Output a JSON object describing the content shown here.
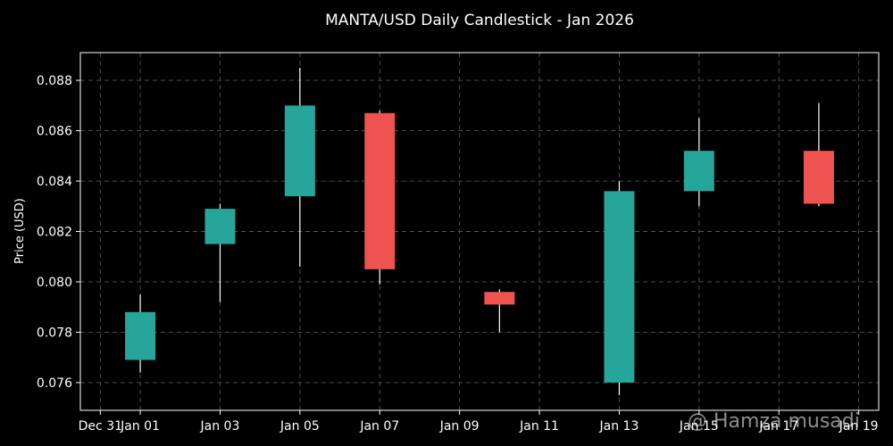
{
  "watermark": "@ Hamza musadi",
  "chart_data": {
    "type": "candlestick",
    "title": "MANTA/USD Daily Candlestick - Jan 2026",
    "xlabel": "",
    "ylabel": "Price (USD)",
    "ylim": [
      0.0749,
      0.0891
    ],
    "yticks": [
      "0.076",
      "0.078",
      "0.080",
      "0.082",
      "0.084",
      "0.086",
      "0.088"
    ],
    "xticks": [
      "Dec 31",
      "Jan 01",
      "Jan 03",
      "Jan 05",
      "Jan 07",
      "Jan 09",
      "Jan 11",
      "Jan 13",
      "Jan 15",
      "Jan 17",
      "Jan 19"
    ],
    "xtick_days": [
      -1,
      0,
      2,
      4,
      6,
      8,
      10,
      12,
      14,
      16,
      18
    ],
    "xlim_days": [
      -1.5,
      18.5
    ],
    "grid": true,
    "up_color": "#26a69a",
    "down_color": "#ef5350",
    "candles": [
      {
        "date": "Jan 01",
        "day": 0,
        "open": 0.0769,
        "high": 0.0795,
        "low": 0.0764,
        "close": 0.0788
      },
      {
        "date": "Jan 03",
        "day": 2,
        "open": 0.0815,
        "high": 0.0831,
        "low": 0.0792,
        "close": 0.0829
      },
      {
        "date": "Jan 05",
        "day": 4,
        "open": 0.0834,
        "high": 0.0885,
        "low": 0.0806,
        "close": 0.087
      },
      {
        "date": "Jan 07",
        "day": 6,
        "open": 0.0867,
        "high": 0.0868,
        "low": 0.0799,
        "close": 0.0805
      },
      {
        "date": "Jan 10",
        "day": 9,
        "open": 0.0796,
        "high": 0.0797,
        "low": 0.078,
        "close": 0.0791
      },
      {
        "date": "Jan 13",
        "day": 12,
        "open": 0.076,
        "high": 0.084,
        "low": 0.0755,
        "close": 0.0836
      },
      {
        "date": "Jan 15",
        "day": 14,
        "open": 0.0836,
        "high": 0.0865,
        "low": 0.083,
        "close": 0.0852
      },
      {
        "date": "Jan 18",
        "day": 17,
        "open": 0.0852,
        "high": 0.0871,
        "low": 0.083,
        "close": 0.0831
      }
    ]
  }
}
